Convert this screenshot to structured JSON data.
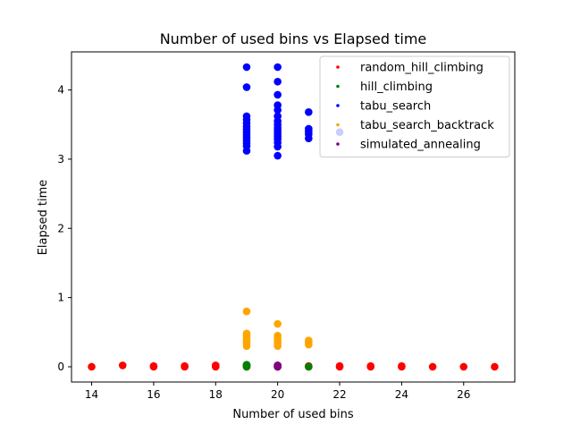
{
  "chart_data": {
    "type": "scatter",
    "title": "Number of used bins vs Elapsed time",
    "xlabel": "Number of used bins",
    "ylabel": "Elapsed time",
    "xlim": [
      13.35,
      27.65
    ],
    "ylim": [
      -0.22,
      4.55
    ],
    "grid": false,
    "legend_position": "top-right",
    "x_ticks": [
      14,
      16,
      18,
      20,
      22,
      24,
      26
    ],
    "y_ticks": [
      0,
      1,
      2,
      3,
      4
    ],
    "series": [
      {
        "name": "random_hill_climbing",
        "color": "#ff0000",
        "points": [
          [
            14,
            0.0
          ],
          [
            15,
            0.02
          ],
          [
            16,
            0.01
          ],
          [
            16,
            0.0
          ],
          [
            17,
            0.0
          ],
          [
            17,
            0.01
          ],
          [
            18,
            0.0
          ],
          [
            18,
            0.01
          ],
          [
            18,
            0.02
          ],
          [
            19,
            0.0
          ],
          [
            19,
            0.01
          ],
          [
            19,
            0.02
          ],
          [
            20,
            0.0
          ],
          [
            20,
            0.01
          ],
          [
            20,
            0.02
          ],
          [
            21,
            0.0
          ],
          [
            21,
            0.01
          ],
          [
            22,
            0.0
          ],
          [
            22,
            0.01
          ],
          [
            23,
            0.0
          ],
          [
            23,
            0.01
          ],
          [
            24,
            0.0
          ],
          [
            24,
            0.01
          ],
          [
            25,
            0.0
          ],
          [
            26,
            0.0
          ],
          [
            27,
            0.0
          ]
        ]
      },
      {
        "name": "hill_climbing",
        "color": "#008000",
        "points": [
          [
            19,
            0.0
          ],
          [
            19,
            0.01
          ],
          [
            19,
            0.02
          ],
          [
            19,
            0.03
          ],
          [
            20,
            0.0
          ],
          [
            21,
            0.0
          ]
        ]
      },
      {
        "name": "tabu_search",
        "color": "#0000ff",
        "points": [
          [
            19,
            4.33
          ],
          [
            19,
            4.04
          ],
          [
            19,
            3.62
          ],
          [
            19,
            3.57
          ],
          [
            19,
            3.52
          ],
          [
            19,
            3.47
          ],
          [
            19,
            3.43
          ],
          [
            19,
            3.39
          ],
          [
            19,
            3.35
          ],
          [
            19,
            3.31
          ],
          [
            19,
            3.27
          ],
          [
            19,
            3.23
          ],
          [
            19,
            3.19
          ],
          [
            19,
            3.12
          ],
          [
            20,
            4.33
          ],
          [
            20,
            4.12
          ],
          [
            20,
            3.93
          ],
          [
            20,
            3.78
          ],
          [
            20,
            3.71
          ],
          [
            20,
            3.62
          ],
          [
            20,
            3.55
          ],
          [
            20,
            3.5
          ],
          [
            20,
            3.45
          ],
          [
            20,
            3.41
          ],
          [
            20,
            3.37
          ],
          [
            20,
            3.33
          ],
          [
            20,
            3.29
          ],
          [
            20,
            3.24
          ],
          [
            20,
            3.18
          ],
          [
            20,
            3.05
          ],
          [
            21,
            3.68
          ],
          [
            21,
            3.44
          ],
          [
            21,
            3.4
          ],
          [
            21,
            3.36
          ],
          [
            21,
            3.3
          ],
          [
            22,
            3.39
          ]
        ]
      },
      {
        "name": "tabu_search_backtrack",
        "color": "#ffa500",
        "points": [
          [
            19,
            0.8
          ],
          [
            19,
            0.48
          ],
          [
            19,
            0.45
          ],
          [
            19,
            0.42
          ],
          [
            19,
            0.39
          ],
          [
            19,
            0.36
          ],
          [
            19,
            0.33
          ],
          [
            19,
            0.3
          ],
          [
            20,
            0.62
          ],
          [
            20,
            0.45
          ],
          [
            20,
            0.41
          ],
          [
            20,
            0.37
          ],
          [
            20,
            0.34
          ],
          [
            20,
            0.3
          ],
          [
            21,
            0.38
          ],
          [
            21,
            0.35
          ],
          [
            21,
            0.32
          ]
        ]
      },
      {
        "name": "simulated_annealing",
        "color": "#800080",
        "points": [
          [
            20,
            0.0
          ],
          [
            20,
            0.01
          ],
          [
            20,
            0.02
          ]
        ]
      }
    ]
  }
}
